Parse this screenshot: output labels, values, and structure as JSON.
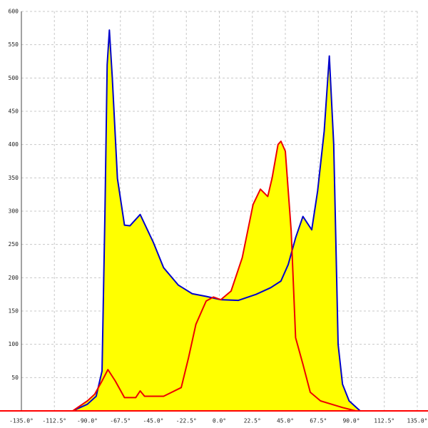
{
  "chart_data": {
    "type": "area",
    "xlim": [
      -135,
      135
    ],
    "ylim": [
      0,
      600
    ],
    "xticks": [
      {
        "value": -135,
        "label": "-135.0°"
      },
      {
        "value": -112.5,
        "label": "-112.5°"
      },
      {
        "value": -90,
        "label": "-90.0°"
      },
      {
        "value": -67.5,
        "label": "-67.5°"
      },
      {
        "value": -45,
        "label": "-45.0°"
      },
      {
        "value": -22.5,
        "label": "-22.5°"
      },
      {
        "value": 0,
        "label": "0.0°"
      },
      {
        "value": 22.5,
        "label": "22.5°"
      },
      {
        "value": 45,
        "label": "45.0°"
      },
      {
        "value": 67.5,
        "label": "67.5°"
      },
      {
        "value": 90,
        "label": "90.0°"
      },
      {
        "value": 112.5,
        "label": "112.5°"
      },
      {
        "value": 135,
        "label": "135.0°"
      }
    ],
    "yticks": [
      50,
      100,
      150,
      200,
      250,
      300,
      350,
      400,
      450,
      500,
      550,
      600
    ],
    "grid": true,
    "fill": "#ffff00",
    "axis_color": "#ff0000",
    "series": [
      {
        "color": "#0000cc",
        "x": [
          -100,
          -90,
          -84,
          -80,
          -78,
          -76.5,
          -75,
          -73,
          -69.5,
          -64.7,
          -61,
          -54,
          -45,
          -38,
          -28,
          -18.5,
          -9,
          1,
          13,
          25,
          35,
          42,
          47,
          52,
          57,
          63,
          67,
          71.5,
          75,
          78,
          81,
          84,
          88.5,
          96
        ],
        "values": [
          0,
          10,
          22,
          60,
          300,
          520,
          572,
          500,
          349,
          279,
          278,
          295,
          253,
          215,
          189,
          176,
          172,
          167,
          166,
          175,
          185,
          195,
          220,
          260,
          292,
          272,
          330,
          420,
          533,
          400,
          100,
          40,
          15,
          0
        ]
      },
      {
        "color": "#ee0000",
        "x": [
          -100,
          -90,
          -85,
          -80,
          -76,
          -71,
          -64.7,
          -57,
          -54,
          -51,
          -38,
          -26,
          -21,
          -16,
          -9,
          -4,
          1,
          8,
          15.6,
          23,
          28,
          33,
          36,
          40,
          42,
          45,
          49,
          52,
          57,
          62,
          69,
          84,
          93
        ],
        "values": [
          0,
          15,
          25,
          45,
          62,
          45,
          20,
          20,
          30,
          22,
          22,
          35,
          80,
          130,
          165,
          171,
          167,
          180,
          230,
          310,
          333,
          322,
          350,
          400,
          405,
          390,
          270,
          110,
          70,
          28,
          15,
          5,
          0
        ]
      }
    ]
  }
}
